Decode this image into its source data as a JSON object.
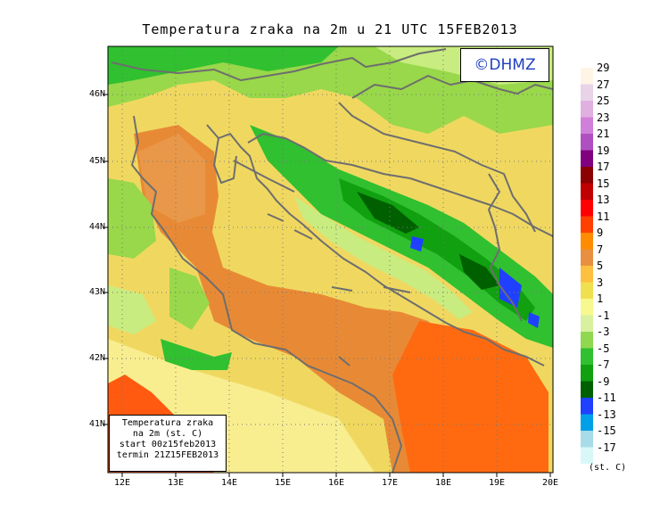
{
  "title": "Temperatura zraka na 2m u 21 UTC 15FEB2013",
  "logo": "©DHMZ",
  "info_box": {
    "line1": "Temperatura zraka",
    "line2": "na 2m (st. C)",
    "line3": "start 00z15feb2013",
    "line4": "termin 21Z15FEB2013"
  },
  "lon_labels": [
    "12E",
    "13E",
    "14E",
    "15E",
    "16E",
    "17E",
    "18E",
    "19E",
    "20E"
  ],
  "lat_labels": [
    "46N",
    "45N",
    "44N",
    "43N",
    "42N",
    "41N"
  ],
  "legend": {
    "unit": "(st. C)",
    "values": [
      "29",
      "27",
      "25",
      "23",
      "21",
      "19",
      "17",
      "15",
      "13",
      "11",
      "9",
      "7",
      "5",
      "3",
      "1",
      "-1",
      "-3",
      "-5",
      "-7",
      "-9",
      "-11",
      "-13",
      "-15",
      "-17"
    ],
    "colors": [
      "#fff4e6",
      "#e8d3e8",
      "#e0b0e0",
      "#d080d8",
      "#b050c0",
      "#800080",
      "#8b0000",
      "#c00000",
      "#ff0000",
      "#ff4000",
      "#ff8c00",
      "#e89040",
      "#ffc040",
      "#f0e050",
      "#f8f890",
      "#d8f0a0",
      "#90d850",
      "#30c030",
      "#10a010",
      "#006000",
      "#2040ff",
      "#00a0e8",
      "#a8dce8",
      "#d8f8f8"
    ]
  },
  "colors": {
    "sea_orange": "#e88a35",
    "coast_yellow": "#f0d860",
    "land_green": "#98d84a",
    "mountain_green": "#1aa53a",
    "deep_green": "#006000",
    "cold_blue": "#2040ff",
    "border_gray": "#6e6e6e"
  }
}
